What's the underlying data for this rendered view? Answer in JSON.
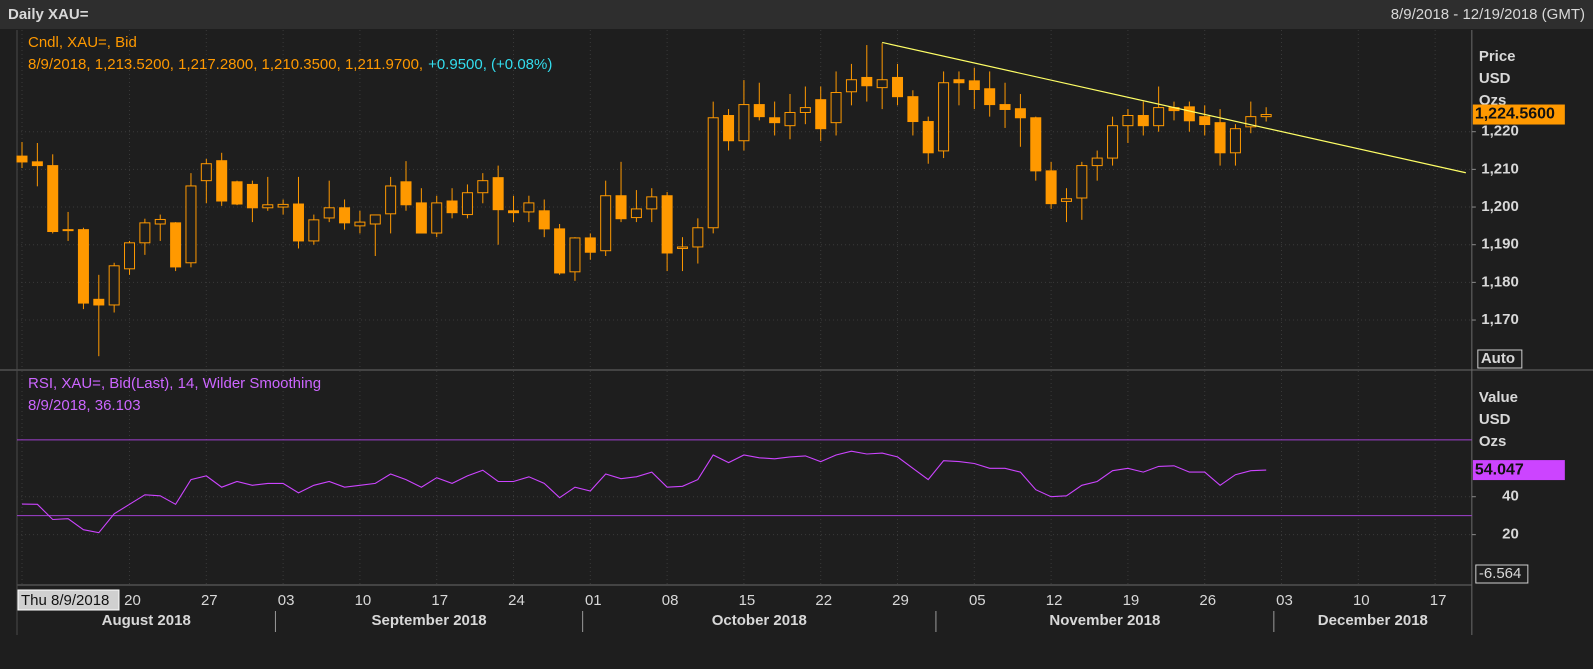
{
  "header": {
    "title": "Daily XAU=",
    "range": "8/9/2018 - 12/19/2018 (GMT)"
  },
  "chart_data": [
    {
      "type": "candlestick",
      "legend": "Cndl, XAU=, Bid",
      "info": "8/9/2018, 1,213.5200, 1,217.2800, 1,210.3500, 1,211.9700,",
      "info_change": "+0.9500, (+0.08%)",
      "axis_label": [
        "Price",
        "USD",
        "Ozs"
      ],
      "button": "Auto",
      "color": "#ff9900",
      "xlim": [
        "2018-08-09",
        "2018-12-19"
      ],
      "ylim": [
        1157,
        1247
      ],
      "yticks": [
        {
          "value": 1170,
          "label": "1,170"
        },
        {
          "value": 1180,
          "label": "1,180"
        },
        {
          "value": 1190,
          "label": "1,190"
        },
        {
          "value": 1200,
          "label": "1,200"
        },
        {
          "value": 1210,
          "label": "1,210"
        },
        {
          "value": 1220,
          "label": "1,220"
        }
      ],
      "grid": true,
      "last_value": {
        "value": 1224.56,
        "label": "1,224.5600"
      },
      "trendline": {
        "x": [
          "2018-10-26",
          "2018-12-19"
        ],
        "y": [
          1243.7,
          1209.1
        ],
        "color": "#ffff66"
      },
      "x": [
        "2018-08-09",
        "2018-08-10",
        "2018-08-13",
        "2018-08-14",
        "2018-08-15",
        "2018-08-16",
        "2018-08-17",
        "2018-08-20",
        "2018-08-21",
        "2018-08-22",
        "2018-08-23",
        "2018-08-24",
        "2018-08-27",
        "2018-08-28",
        "2018-08-29",
        "2018-08-30",
        "2018-08-31",
        "2018-09-03",
        "2018-09-04",
        "2018-09-05",
        "2018-09-06",
        "2018-09-07",
        "2018-09-10",
        "2018-09-11",
        "2018-09-12",
        "2018-09-13",
        "2018-09-14",
        "2018-09-17",
        "2018-09-18",
        "2018-09-19",
        "2018-09-20",
        "2018-09-21",
        "2018-09-24",
        "2018-09-25",
        "2018-09-26",
        "2018-09-27",
        "2018-09-28",
        "2018-10-01",
        "2018-10-02",
        "2018-10-03",
        "2018-10-04",
        "2018-10-05",
        "2018-10-08",
        "2018-10-09",
        "2018-10-10",
        "2018-10-11",
        "2018-10-12",
        "2018-10-15",
        "2018-10-16",
        "2018-10-17",
        "2018-10-18",
        "2018-10-19",
        "2018-10-22",
        "2018-10-23",
        "2018-10-24",
        "2018-10-25",
        "2018-10-26",
        "2018-10-29",
        "2018-10-30",
        "2018-10-31",
        "2018-11-01",
        "2018-11-02",
        "2018-11-05",
        "2018-11-06",
        "2018-11-07",
        "2018-11-08",
        "2018-11-09",
        "2018-11-12",
        "2018-11-13",
        "2018-11-14",
        "2018-11-15",
        "2018-11-16",
        "2018-11-19",
        "2018-11-20",
        "2018-11-21",
        "2018-11-22",
        "2018-11-23",
        "2018-11-26",
        "2018-11-27",
        "2018-11-28",
        "2018-11-29",
        "2018-11-30"
      ],
      "open": [
        1213.52,
        1212,
        1211,
        1194,
        1194,
        1175.5,
        1174,
        1183.6,
        1190.5,
        1195.5,
        1195.8,
        1185.2,
        1207,
        1212.3,
        1206.7,
        1206,
        1199.8,
        1200,
        1200.8,
        1191,
        1197.1,
        1199.8,
        1195,
        1195.5,
        1198.2,
        1206.7,
        1201.1,
        1193.1,
        1201.6,
        1198,
        1203.8,
        1207.8,
        1199,
        1198.7,
        1199,
        1194.2,
        1182.8,
        1191.8,
        1188.4,
        1203,
        1197.2,
        1199.5,
        1203,
        1189,
        1189.4,
        1194.5,
        1224.3,
        1217.6,
        1227.2,
        1223.7,
        1221.6,
        1225.1,
        1228.5,
        1222.4,
        1230.6,
        1234.4,
        1231.7,
        1234.4,
        1229.3,
        1222.7,
        1214.9,
        1233.8,
        1233.5,
        1231.4,
        1227.2,
        1226.1,
        1223.7,
        1209.6,
        1201.5,
        1202.4,
        1211,
        1213,
        1221.6,
        1224.3,
        1221.6,
        1226.4,
        1226.6,
        1224,
        1222.4,
        1214.4,
        1221.3,
        1224
      ],
      "high": [
        1217.28,
        1217,
        1214,
        1198.7,
        1194.5,
        1182,
        1185.2,
        1191,
        1196.9,
        1198,
        1196,
        1209,
        1212.8,
        1214.4,
        1207,
        1207,
        1208,
        1202,
        1208,
        1198,
        1207,
        1202,
        1199,
        1198,
        1208,
        1212.2,
        1205,
        1203,
        1205,
        1206,
        1209,
        1211,
        1203,
        1203,
        1202,
        1195.5,
        1192,
        1193,
        1207,
        1212,
        1204.5,
        1205,
        1204,
        1192,
        1197,
        1228,
        1226,
        1233.7,
        1233,
        1228,
        1230,
        1232,
        1232,
        1236,
        1238,
        1243,
        1243.5,
        1238,
        1231,
        1224,
        1236,
        1236,
        1237,
        1236,
        1233,
        1230,
        1224,
        1212,
        1205,
        1212,
        1215,
        1224,
        1226,
        1228,
        1232,
        1228,
        1228,
        1227,
        1226,
        1222,
        1228,
        1226.5
      ],
      "low": [
        1210.35,
        1205.5,
        1193,
        1191,
        1172.9,
        1160.4,
        1172,
        1182,
        1187.3,
        1191,
        1183,
        1184,
        1201,
        1200.3,
        1200.5,
        1196,
        1199,
        1198,
        1189,
        1190,
        1196,
        1194,
        1193,
        1187,
        1193,
        1199,
        1193,
        1192,
        1197,
        1197,
        1201,
        1190,
        1196,
        1196,
        1192,
        1182,
        1180.4,
        1186,
        1187,
        1196,
        1196,
        1196,
        1183,
        1183,
        1185,
        1193,
        1215,
        1215,
        1223,
        1219,
        1218,
        1222,
        1217.5,
        1219,
        1227,
        1228,
        1226,
        1227,
        1219,
        1211.5,
        1213,
        1227,
        1226,
        1224,
        1221,
        1216,
        1207,
        1199.5,
        1196,
        1196.6,
        1207,
        1211,
        1217,
        1219,
        1220,
        1223,
        1220,
        1219,
        1211,
        1211,
        1219.6,
        1222.7
      ],
      "close": [
        1211.97,
        1211,
        1193.5,
        1194,
        1174.5,
        1174,
        1184.4,
        1190.5,
        1195.8,
        1196.7,
        1184.1,
        1205.6,
        1211.5,
        1201.6,
        1200.8,
        1199.8,
        1200.6,
        1200.7,
        1191,
        1196.6,
        1199.8,
        1195.8,
        1196,
        1197.9,
        1205.6,
        1200.6,
        1193.1,
        1201.1,
        1198.5,
        1203.8,
        1207,
        1199.3,
        1198.5,
        1201.1,
        1194.2,
        1182.5,
        1191.8,
        1188,
        1203,
        1196.9,
        1199.5,
        1202.7,
        1187.8,
        1189.4,
        1194.5,
        1223.7,
        1217.6,
        1227.2,
        1224,
        1222.4,
        1225.1,
        1226.4,
        1220.8,
        1230.4,
        1233.8,
        1232.2,
        1233.8,
        1229.3,
        1222.7,
        1214.4,
        1233,
        1233,
        1231.2,
        1227.2,
        1225.9,
        1223.7,
        1209.6,
        1200.9,
        1202.2,
        1211,
        1213,
        1221.6,
        1224.3,
        1221.6,
        1226.4,
        1225.6,
        1222.9,
        1221.9,
        1214.4,
        1220.8,
        1224,
        1224.56
      ]
    },
    {
      "type": "line",
      "legend": "RSI, XAU=, Bid(Last),  14, Wilder Smoothing",
      "info": "8/9/2018, 36.103",
      "axis_label": [
        "Value",
        "USD",
        "Ozs"
      ],
      "color": "#cc44ff",
      "level_color": "#a040d0",
      "xlim": [
        "2018-08-09",
        "2018-12-19"
      ],
      "ylim": [
        -6.564,
        106.3
      ],
      "yticks": [
        20,
        40
      ],
      "levels": [
        70,
        30
      ],
      "grid": true,
      "last_value": {
        "value": 54.047,
        "label": "54.047"
      },
      "x": [
        "2018-08-09",
        "2018-08-10",
        "2018-08-13",
        "2018-08-14",
        "2018-08-15",
        "2018-08-16",
        "2018-08-17",
        "2018-08-20",
        "2018-08-21",
        "2018-08-22",
        "2018-08-23",
        "2018-08-24",
        "2018-08-27",
        "2018-08-28",
        "2018-08-29",
        "2018-08-30",
        "2018-08-31",
        "2018-09-03",
        "2018-09-04",
        "2018-09-05",
        "2018-09-06",
        "2018-09-07",
        "2018-09-10",
        "2018-09-11",
        "2018-09-12",
        "2018-09-13",
        "2018-09-14",
        "2018-09-17",
        "2018-09-18",
        "2018-09-19",
        "2018-09-20",
        "2018-09-21",
        "2018-09-24",
        "2018-09-25",
        "2018-09-26",
        "2018-09-27",
        "2018-09-28",
        "2018-10-01",
        "2018-10-02",
        "2018-10-03",
        "2018-10-04",
        "2018-10-05",
        "2018-10-08",
        "2018-10-09",
        "2018-10-10",
        "2018-10-11",
        "2018-10-12",
        "2018-10-15",
        "2018-10-16",
        "2018-10-17",
        "2018-10-18",
        "2018-10-19",
        "2018-10-22",
        "2018-10-23",
        "2018-10-24",
        "2018-10-25",
        "2018-10-26",
        "2018-10-29",
        "2018-10-30",
        "2018-10-31",
        "2018-11-01",
        "2018-11-02",
        "2018-11-05",
        "2018-11-06",
        "2018-11-07",
        "2018-11-08",
        "2018-11-09",
        "2018-11-12",
        "2018-11-13",
        "2018-11-14",
        "2018-11-15",
        "2018-11-16",
        "2018-11-19",
        "2018-11-20",
        "2018-11-21",
        "2018-11-22",
        "2018-11-23",
        "2018-11-26",
        "2018-11-27",
        "2018-11-28",
        "2018-11-29",
        "2018-11-30"
      ],
      "values": [
        36.103,
        36,
        28,
        28.4,
        22.6,
        21,
        31,
        36,
        41,
        40.5,
        36,
        49,
        51,
        45,
        48,
        46,
        47,
        47,
        42,
        46,
        48,
        45,
        46,
        47,
        52,
        49,
        45,
        50,
        47,
        51,
        54,
        48,
        48,
        50.5,
        47,
        39.5,
        45,
        43,
        52,
        49.5,
        50.5,
        53,
        45,
        45.5,
        49,
        62,
        58,
        62,
        60.5,
        60,
        61,
        61.5,
        58.5,
        62,
        64,
        62.5,
        63,
        61,
        55,
        49,
        59,
        58.5,
        57.5,
        55,
        55,
        53,
        43.7,
        40,
        40.5,
        46,
        48,
        53.7,
        55,
        53,
        56,
        56.3,
        53,
        53,
        46,
        51.6,
        53.7,
        54.047
      ]
    }
  ],
  "x_axis": {
    "xticks": [
      {
        "value": "2018-08-09",
        "label": "Thu 8/9/2018"
      },
      {
        "value": "2018-08-20",
        "label": "20"
      },
      {
        "value": "2018-08-27",
        "label": "27"
      },
      {
        "value": "2018-09-03",
        "label": "03"
      },
      {
        "value": "2018-09-10",
        "label": "10"
      },
      {
        "value": "2018-09-17",
        "label": "17"
      },
      {
        "value": "2018-09-24",
        "label": "24"
      },
      {
        "value": "2018-10-01",
        "label": "01"
      },
      {
        "value": "2018-10-08",
        "label": "08"
      },
      {
        "value": "2018-10-15",
        "label": "15"
      },
      {
        "value": "2018-10-22",
        "label": "22"
      },
      {
        "value": "2018-10-29",
        "label": "29"
      },
      {
        "value": "2018-11-05",
        "label": "05"
      },
      {
        "value": "2018-11-12",
        "label": "12"
      },
      {
        "value": "2018-11-19",
        "label": "19"
      },
      {
        "value": "2018-11-26",
        "label": "26"
      },
      {
        "value": "2018-12-03",
        "label": "03"
      },
      {
        "value": "2018-12-10",
        "label": "10"
      },
      {
        "value": "2018-12-17",
        "label": "17"
      }
    ],
    "months": [
      {
        "value": "2018-08",
        "label": "August 2018"
      },
      {
        "value": "2018-09",
        "label": "September 2018"
      },
      {
        "value": "2018-10",
        "label": "October 2018"
      },
      {
        "value": "2018-11",
        "label": "November 2018"
      },
      {
        "value": "2018-12",
        "label": "December 2018"
      }
    ]
  }
}
